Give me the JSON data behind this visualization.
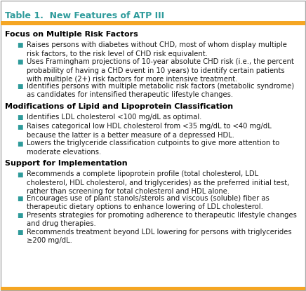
{
  "title": "Table 1.  New Features of ATP III",
  "title_color": "#2E9B9B",
  "header_bar_color": "#F5A623",
  "body_bg": "#FFFFFF",
  "border_color": "#AAAAAA",
  "bullet_color": "#2E9B9B",
  "section_font_size": 8.0,
  "body_font_size": 7.2,
  "title_font_size": 9.0,
  "sections": [
    {
      "heading": "Focus on Multiple Risk Factors",
      "bullets": [
        "Raises persons with diabetes without CHD, most of whom display multiple\nrisk factors, to the risk level of CHD risk equivalent.",
        "Uses Framingham projections of 10-year absolute CHD risk (i.e., the percent\nprobability of having a CHD event in 10 years) to identify certain patients\nwith multiple (2+) risk factors for more intensive treatment.",
        "Identifies persons with multiple metabolic risk factors (metabolic syndrome)\nas candidates for intensified therapeutic lifestyle changes."
      ]
    },
    {
      "heading": "Modifications of Lipid and Lipoprotein Classification",
      "bullets": [
        "Identifies LDL cholesterol <100 mg/dL as optimal.",
        "Raises categorical low HDL cholesterol from <35 mg/dL to <40 mg/dL\nbecause the latter is a better measure of a depressed HDL.",
        "Lowers the triglyceride classification cutpoints to give more attention to\nmoderate elevations."
      ]
    },
    {
      "heading": "Support for Implementation",
      "bullets": [
        "Recommends a complete lipoprotein profile (total cholesterol, LDL\ncholesterol, HDL cholesterol, and triglycerides) as the preferred initial test,\nrather than screening for total cholesterol and HDL alone.",
        "Encourages use of plant stanols/sterols and viscous (soluble) fiber as\ntherapeutic dietary options to enhance lowering of LDL cholesterol.",
        "Presents strategies for promoting adherence to therapeutic lifestyle changes\nand drug therapies.",
        "Recommends treatment beyond LDL lowering for persons with triglycerides\n≥200 mg/dL."
      ]
    }
  ]
}
